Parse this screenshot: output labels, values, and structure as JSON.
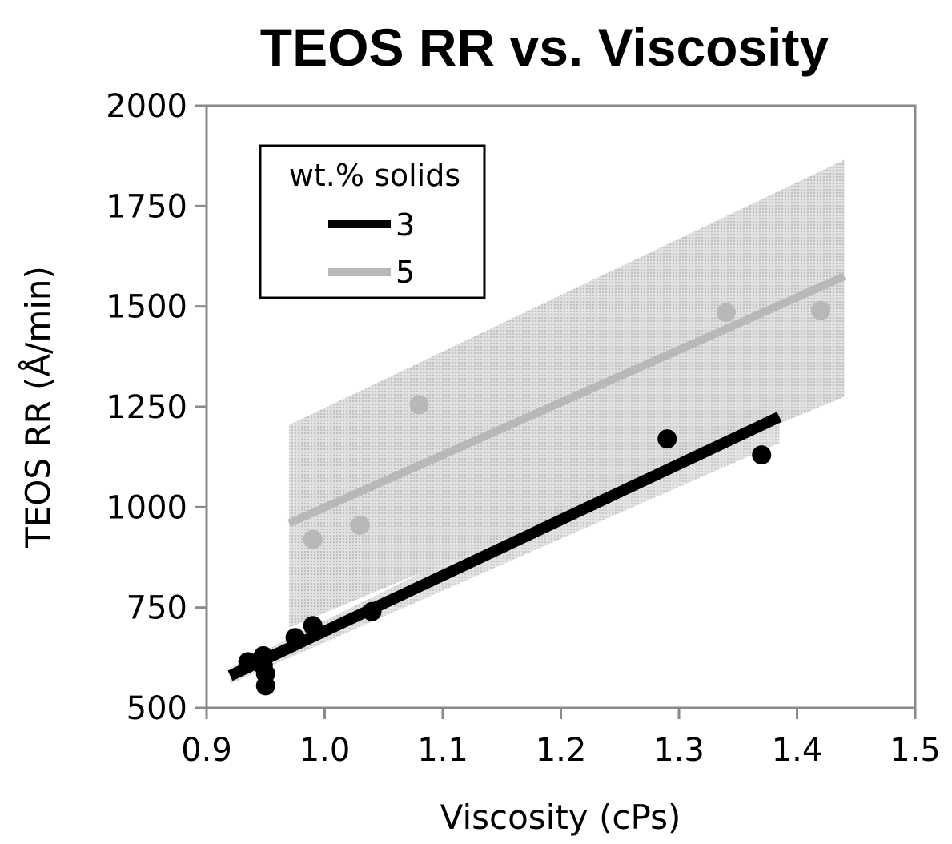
{
  "chart_data": {
    "type": "scatter",
    "title": "TEOS RR vs. Viscosity",
    "xlabel": "Viscosity (cPs)",
    "ylabel": "TEOS RR (Å/min)",
    "xlim": [
      0.9,
      1.5
    ],
    "ylim": [
      500,
      2000
    ],
    "x_ticks": [
      "0.9",
      "1.0",
      "1.1",
      "1.2",
      "1.3",
      "1.4",
      "1.5"
    ],
    "y_ticks": [
      "500",
      "750",
      "1000",
      "1250",
      "1500",
      "1750",
      "2000"
    ],
    "grid": false,
    "legend": {
      "title": "wt.% solids",
      "placement": "top-left"
    },
    "colors": {
      "series_3": "#000000",
      "series_5": "#b8b8b8",
      "band_3": "#d6d6d6",
      "band_5": "#d0d0d0"
    },
    "series": [
      {
        "name": "3",
        "points": [
          {
            "x": 0.935,
            "y": 615
          },
          {
            "x": 0.948,
            "y": 630
          },
          {
            "x": 0.948,
            "y": 605
          },
          {
            "x": 0.95,
            "y": 585
          },
          {
            "x": 0.95,
            "y": 555
          },
          {
            "x": 0.975,
            "y": 675
          },
          {
            "x": 0.99,
            "y": 705
          },
          {
            "x": 1.04,
            "y": 740
          },
          {
            "x": 1.29,
            "y": 1170
          },
          {
            "x": 1.37,
            "y": 1130
          }
        ],
        "fit": {
          "x": [
            0.92,
            1.385
          ],
          "y": [
            580,
            1225
          ]
        },
        "band": {
          "x": [
            0.92,
            1.385
          ],
          "upper": [
            600,
            1280
          ],
          "lower": [
            560,
            1160
          ]
        }
      },
      {
        "name": "5",
        "points": [
          {
            "x": 0.99,
            "y": 920
          },
          {
            "x": 1.03,
            "y": 955
          },
          {
            "x": 1.08,
            "y": 1255
          },
          {
            "x": 1.34,
            "y": 1485
          },
          {
            "x": 1.42,
            "y": 1490
          }
        ],
        "fit": {
          "x": [
            0.97,
            1.44
          ],
          "y": [
            960,
            1575
          ]
        },
        "band": {
          "x": [
            0.97,
            1.44
          ],
          "upper": [
            1205,
            1865
          ],
          "lower": [
            700,
            1275
          ]
        }
      }
    ]
  }
}
